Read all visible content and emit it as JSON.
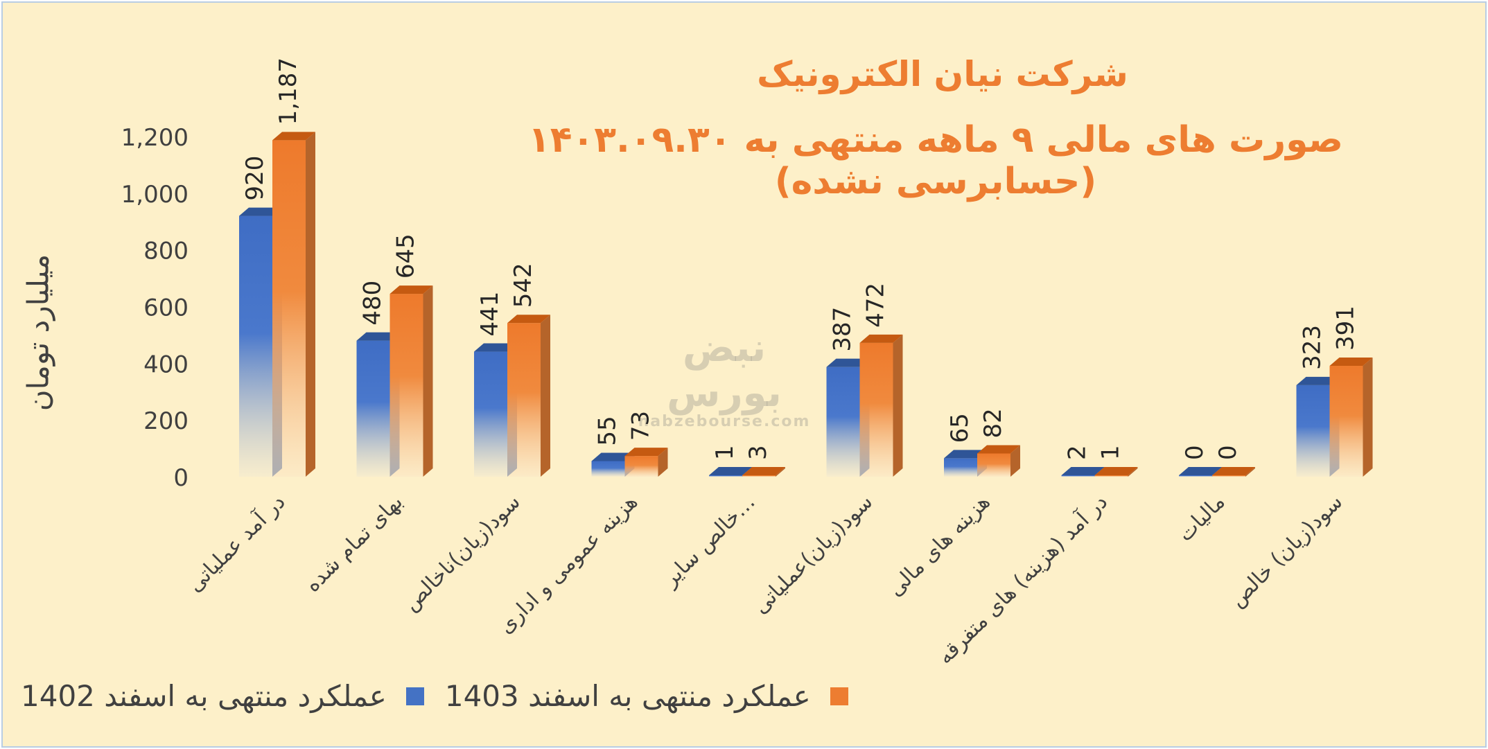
{
  "title_line1": "شرکت  نیان الکترونیک",
  "title_line2": "صورت های مالی ۹ ماهه منتهی به ۱۴۰۳.۰۹.۳۰ (حسابرسی نشده)",
  "watermark": {
    "main": "نبض بورس",
    "sub": "nabzebourse.com"
  },
  "legend": [
    {
      "label": "عملکرد منتهی به اسفند 1403",
      "color": "#ed7d31"
    },
    {
      "label": "عملکرد منتهی به اسفند 1402",
      "color": "#4472c4"
    }
  ],
  "chart_data": {
    "type": "bar",
    "ylabel": "میلیارد تومان",
    "ylim": [
      0,
      1200
    ],
    "yticks": [
      "0",
      "200",
      "400",
      "600",
      "800",
      "1,000",
      "1,200"
    ],
    "grid": false,
    "legend_position": "bottom-right",
    "categories": [
      "در آمد عملیاتی",
      "بهای تمام شده",
      "سود(زیان)ناخالص",
      "هزینه عمومی و اداری",
      "خالص سایر…",
      "سود(زیان)عملیاتی",
      "هزینه های مالی",
      "در آمد (هزینه) های متفرقه",
      "مالیات",
      "سود(زیان) خالص"
    ],
    "series": [
      {
        "name": "عملکرد منتهی به اسفند 1402",
        "color": "#4472c4",
        "values": [
          920,
          480,
          441,
          55,
          1,
          387,
          65,
          2,
          0,
          323
        ],
        "labels": [
          "920",
          "480",
          "441",
          "55",
          "1",
          "387",
          "65",
          "2",
          "0",
          "323"
        ]
      },
      {
        "name": "عملکرد منتهی به اسفند 1403",
        "color": "#ed7d31",
        "values": [
          1187,
          645,
          542,
          73,
          3,
          472,
          82,
          1,
          0,
          391
        ],
        "labels": [
          "1,187",
          "645",
          "542",
          "73",
          "3",
          "472",
          "82",
          "1",
          "0",
          "391"
        ]
      }
    ]
  }
}
